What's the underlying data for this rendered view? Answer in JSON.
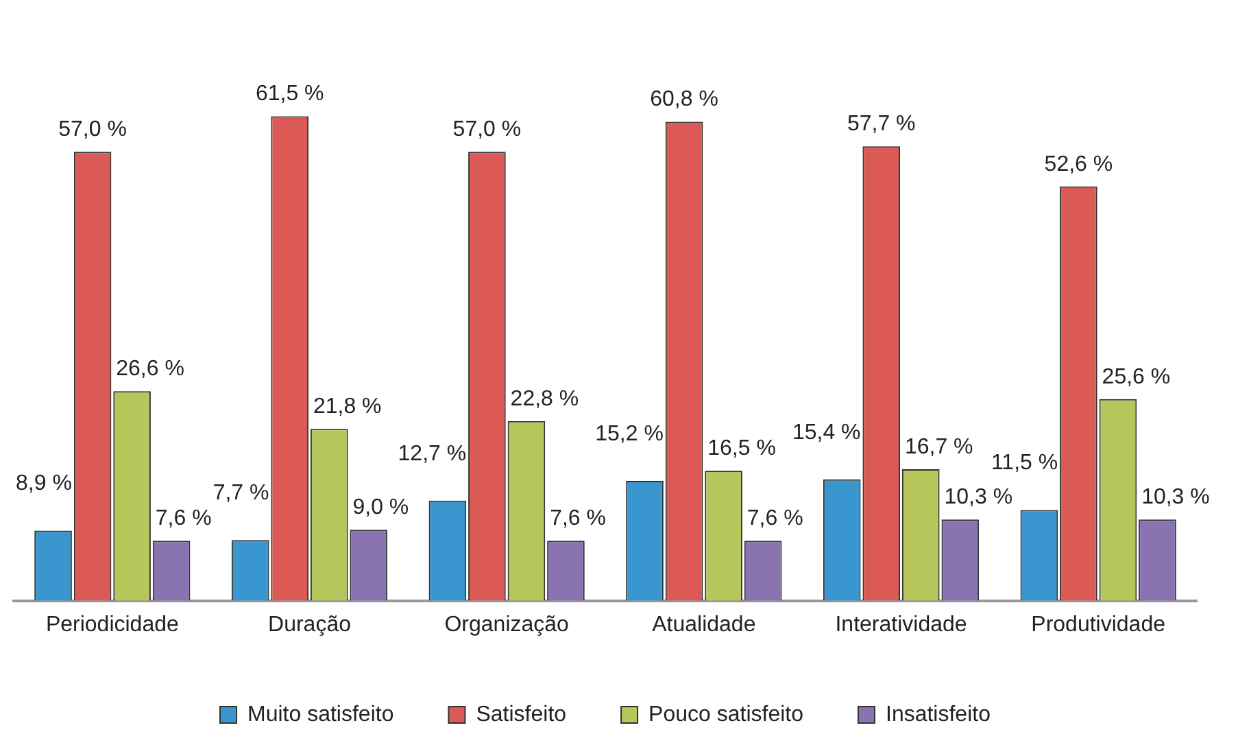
{
  "chart_data": {
    "type": "bar",
    "categories": [
      "Periodicidade",
      "Duração",
      "Organização",
      "Atualidade",
      "Interatividade",
      "Produtividade"
    ],
    "series": [
      {
        "name": "Muito satisfeito",
        "color": "#3a96cf",
        "values": [
          8.9,
          7.7,
          12.7,
          15.2,
          15.4,
          11.5
        ],
        "value_labels": [
          "8,9 %",
          "7,7 %",
          "12,7 %",
          "15,2 %",
          "15,4 %",
          "11,5 %"
        ]
      },
      {
        "name": "Satisfeito",
        "color": "#db5a55",
        "values": [
          57.0,
          61.5,
          57.0,
          60.8,
          57.7,
          52.6
        ],
        "value_labels": [
          "57,0 %",
          "61,5 %",
          "57,0 %",
          "60,8 %",
          "57,7 %",
          "52,6 %"
        ]
      },
      {
        "name": "Pouco satisfeito",
        "color": "#b7c65a",
        "values": [
          26.6,
          21.8,
          22.8,
          16.5,
          16.7,
          25.6
        ],
        "value_labels": [
          "26,6 %",
          "21,8 %",
          "22,8 %",
          "16,5 %",
          "16,7 %",
          "25,6 %"
        ]
      },
      {
        "name": "Insatisfeito",
        "color": "#8a73b1",
        "values": [
          7.6,
          9.0,
          7.6,
          7.6,
          10.3,
          10.3
        ],
        "value_labels": [
          "7,6 %",
          "9,0 %",
          "7,6 %",
          "7,6 %",
          "10,3 %",
          "10,3 %"
        ]
      }
    ],
    "legend": "bottom",
    "grid": false
  }
}
